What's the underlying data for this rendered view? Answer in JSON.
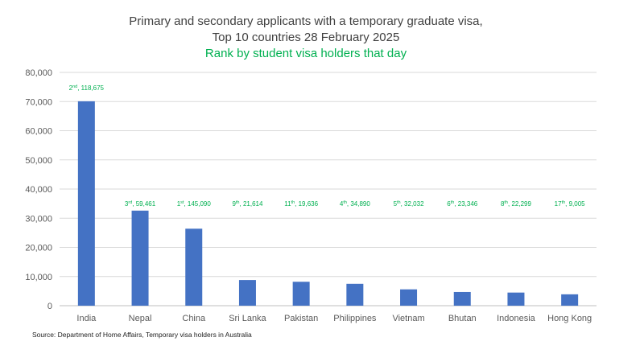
{
  "chart_data": {
    "type": "bar",
    "title_line1": "Primary and secondary applicants with a temporary graduate visa,",
    "title_line2": "Top 10 countries 28 February 2025",
    "subtitle": "Rank by student visa holders that day",
    "categories": [
      "India",
      "Nepal",
      "China",
      "Sri Lanka",
      "Pakistan",
      "Philippines",
      "Vietnam",
      "Bhutan",
      "Indonesia",
      "Hong Kong"
    ],
    "values": [
      70100,
      32600,
      26400,
      8800,
      8200,
      7500,
      5600,
      4700,
      4500,
      3900
    ],
    "annotations": [
      {
        "rank": "2",
        "suffix": "nd",
        "value": "118,675"
      },
      {
        "rank": "3",
        "suffix": "rd",
        "value": "59,461"
      },
      {
        "rank": "1",
        "suffix": "st",
        "value": "145,090"
      },
      {
        "rank": "9",
        "suffix": "th",
        "value": "21,614"
      },
      {
        "rank": "11",
        "suffix": "th",
        "value": "19,636"
      },
      {
        "rank": "4",
        "suffix": "th",
        "value": "34,890"
      },
      {
        "rank": "5",
        "suffix": "th",
        "value": "32,032"
      },
      {
        "rank": "6",
        "suffix": "th",
        "value": "23,346"
      },
      {
        "rank": "8",
        "suffix": "th",
        "value": "22,299"
      },
      {
        "rank": "17",
        "suffix": "th",
        "value": "9,005"
      }
    ],
    "ylim": [
      0,
      80000
    ],
    "yticks": [
      0,
      10000,
      20000,
      30000,
      40000,
      50000,
      60000,
      70000,
      80000
    ],
    "ytick_labels": [
      "0",
      "10,000",
      "20,000",
      "30,000",
      "40,000",
      "50,000",
      "60,000",
      "70,000",
      "80,000"
    ],
    "grid": true,
    "colors": {
      "bar": "#4472C4",
      "annotation": "#00B050",
      "subtitle": "#00B050",
      "grid": "#D9D9D9"
    }
  },
  "source": "Source: Department of Home Affairs, Temporary visa holders in Australia"
}
